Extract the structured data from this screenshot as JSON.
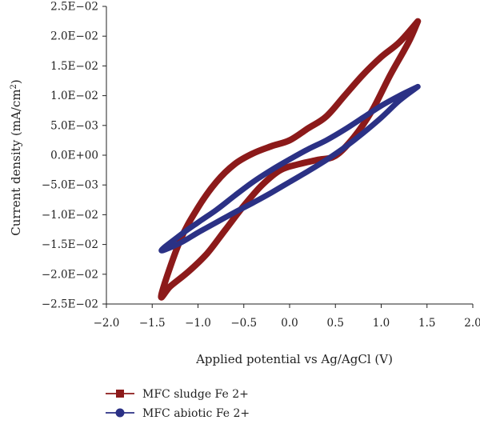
{
  "chart_data": {
    "type": "line",
    "title": "",
    "xlabel": "Applied potential vs Ag/AgCl (V)",
    "ylabel_main": "Current density (mA/cm",
    "ylabel_sup": "2",
    "ylabel_close": ")",
    "xlim": [
      -2.0,
      2.0
    ],
    "ylim": [
      -0.025,
      0.025
    ],
    "x_ticks": [
      -2.0,
      -1.5,
      -1.0,
      -0.5,
      0.0,
      0.5,
      1.0,
      1.5,
      2.0
    ],
    "x_tick_labels": [
      "−2.0",
      "−1.5",
      "−1.0",
      "−0.5",
      "0.0",
      "0.5",
      "1.0",
      "1.5",
      "2.0"
    ],
    "y_ticks": [
      0.025,
      0.02,
      0.015,
      0.01,
      0.005,
      0.0,
      -0.005,
      -0.01,
      -0.015,
      -0.02,
      -0.025
    ],
    "y_tick_labels": [
      "2.5E−02",
      "2.0E−02",
      "1.5E−02",
      "1.0E−02",
      "5.0E−03",
      "0.0E+00",
      "−5.0E−03",
      "−1.0E−02",
      "−1.5E−02",
      "−2.0E−02",
      "−2.5E−02"
    ],
    "grid": false,
    "legend_position": "bottom-left",
    "series": [
      {
        "name": "MFC sludge Fe 2+",
        "color": "#8c1a1a",
        "marker": "square",
        "points": [
          [
            1.4,
            0.0225
          ],
          [
            1.2,
            0.019
          ],
          [
            1.0,
            0.0165
          ],
          [
            0.8,
            0.0135
          ],
          [
            0.6,
            0.01
          ],
          [
            0.4,
            0.0065
          ],
          [
            0.2,
            0.0045
          ],
          [
            0.0,
            0.0025
          ],
          [
            -0.2,
            0.0015
          ],
          [
            -0.4,
            0.0003
          ],
          [
            -0.6,
            -0.0015
          ],
          [
            -0.8,
            -0.0045
          ],
          [
            -1.0,
            -0.0088
          ],
          [
            -1.2,
            -0.0145
          ],
          [
            -1.4,
            -0.0235
          ],
          [
            -1.3,
            -0.022
          ],
          [
            -1.1,
            -0.0195
          ],
          [
            -0.9,
            -0.0165
          ],
          [
            -0.7,
            -0.0125
          ],
          [
            -0.5,
            -0.0085
          ],
          [
            -0.3,
            -0.005
          ],
          [
            -0.1,
            -0.0025
          ],
          [
            0.1,
            -0.0015
          ],
          [
            0.3,
            -0.0008
          ],
          [
            0.5,
            -0.0001
          ],
          [
            0.7,
            0.003
          ],
          [
            0.9,
            0.0075
          ],
          [
            1.1,
            0.0135
          ],
          [
            1.3,
            0.019
          ],
          [
            1.4,
            0.0225
          ]
        ]
      },
      {
        "name": "MFC abiotic Fe 2+",
        "color": "#2b3185",
        "marker": "circle",
        "points": [
          [
            1.4,
            0.0115
          ],
          [
            1.2,
            0.01
          ],
          [
            1.0,
            0.0083
          ],
          [
            0.8,
            0.0063
          ],
          [
            0.6,
            0.0043
          ],
          [
            0.4,
            0.0025
          ],
          [
            0.2,
            0.001
          ],
          [
            0.0,
            -0.0007
          ],
          [
            -0.2,
            -0.0025
          ],
          [
            -0.4,
            -0.0045
          ],
          [
            -0.6,
            -0.0068
          ],
          [
            -0.8,
            -0.0092
          ],
          [
            -1.0,
            -0.0113
          ],
          [
            -1.2,
            -0.0135
          ],
          [
            -1.4,
            -0.016
          ],
          [
            -1.2,
            -0.0148
          ],
          [
            -1.0,
            -0.013
          ],
          [
            -0.8,
            -0.0113
          ],
          [
            -0.6,
            -0.0096
          ],
          [
            -0.4,
            -0.008
          ],
          [
            -0.2,
            -0.0063
          ],
          [
            0.0,
            -0.0045
          ],
          [
            0.2,
            -0.0027
          ],
          [
            0.4,
            -0.0008
          ],
          [
            0.6,
            0.0013
          ],
          [
            0.8,
            0.0037
          ],
          [
            1.0,
            0.0063
          ],
          [
            1.2,
            0.0092
          ],
          [
            1.4,
            0.0115
          ]
        ]
      }
    ]
  }
}
